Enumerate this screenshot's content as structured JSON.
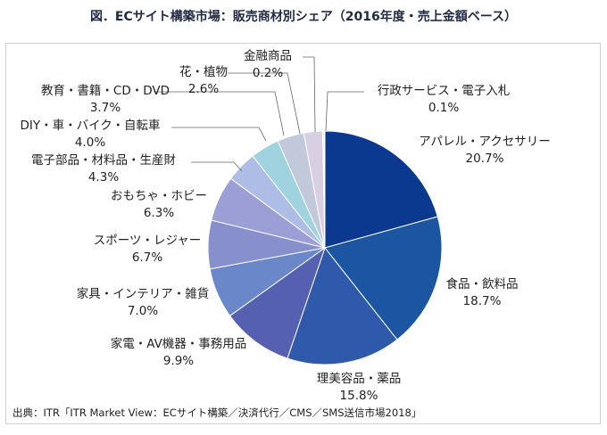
{
  "chart_data": {
    "type": "pie",
    "title": "図．ECサイト構築市場：販売商材別シェア（2016年度・売上金額ベース）",
    "unit": "%",
    "slices": [
      {
        "label": "アパレル・アクセサリー",
        "value": 20.7,
        "value_label": "20.7%",
        "color": "#0b3990"
      },
      {
        "label": "食品・飲料品",
        "value": 18.7,
        "value_label": "18.7%",
        "color": "#1c55a2"
      },
      {
        "label": "理美容品・薬品",
        "value": 15.8,
        "value_label": "15.8%",
        "color": "#2f5aab"
      },
      {
        "label": "家電・AV機器・事務用品",
        "value": 9.9,
        "value_label": "9.9%",
        "color": "#5660b0"
      },
      {
        "label": "家具・インテリア・雑貨",
        "value": 7.0,
        "value_label": "7.0%",
        "color": "#6a88c9"
      },
      {
        "label": "スポーツ・レジャー",
        "value": 6.7,
        "value_label": "6.7%",
        "color": "#8790cc"
      },
      {
        "label": "おもちゃ・ホビー",
        "value": 6.3,
        "value_label": "6.3%",
        "color": "#9c9fd5"
      },
      {
        "label": "電子部品・材料品・生産財",
        "value": 4.3,
        "value_label": "4.3%",
        "color": "#adbde6"
      },
      {
        "label": "DIY・車・バイク・自転車",
        "value": 4.0,
        "value_label": "4.0%",
        "color": "#9fd3df"
      },
      {
        "label": "教育・書籍・CD・DVD",
        "value": 3.7,
        "value_label": "3.7%",
        "color": "#c2c9da"
      },
      {
        "label": "花・植物",
        "value": 2.6,
        "value_label": "2.6%",
        "color": "#d8cfe2"
      },
      {
        "label": "金融商品",
        "value": 0.2,
        "value_label": "0.2%",
        "color": "#e6e6ee"
      },
      {
        "label": "行政サービス・電子入札",
        "value": 0.1,
        "value_label": "0.1%",
        "color": "#c8d4ec"
      }
    ],
    "start_angle": "12 o'clock",
    "direction": "clockwise",
    "legend": "none (direct labels)"
  },
  "source": "出典：ITR「ITR Market View：ECサイト構築／決済代行／CMS／SMS送信市場2018」"
}
